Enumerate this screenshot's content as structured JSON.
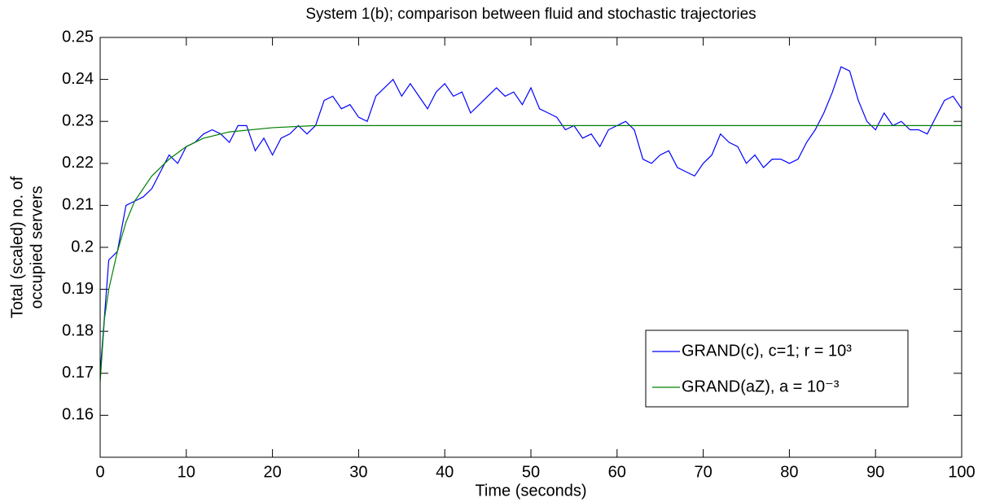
{
  "chart_data": {
    "type": "line",
    "title": "System 1(b); comparison between fluid and stochastic trajectories",
    "xlabel": "Time (seconds)",
    "ylabel": [
      "Total (scaled) no. of",
      "occupied servers"
    ],
    "xlim": [
      0,
      100
    ],
    "ylim": [
      0.15,
      0.25
    ],
    "xticks": [
      0,
      10,
      20,
      30,
      40,
      50,
      60,
      70,
      80,
      90,
      100
    ],
    "yticks": [
      0.16,
      0.17,
      0.18,
      0.19,
      0.2,
      0.21,
      0.22,
      0.23,
      0.24,
      0.25
    ],
    "legend": "lower right",
    "series": [
      {
        "name": "GRAND(c), c=1; r = 10³",
        "color": "#0000ff",
        "x": [
          0,
          1,
          2,
          3,
          4,
          5,
          6,
          7,
          8,
          9,
          10,
          11,
          12,
          13,
          14,
          15,
          16,
          17,
          18,
          19,
          20,
          21,
          22,
          23,
          24,
          25,
          26,
          27,
          28,
          29,
          30,
          31,
          32,
          33,
          34,
          35,
          36,
          37,
          38,
          39,
          40,
          41,
          42,
          43,
          44,
          45,
          46,
          47,
          48,
          49,
          50,
          51,
          52,
          53,
          54,
          55,
          56,
          57,
          58,
          59,
          60,
          61,
          62,
          63,
          64,
          65,
          66,
          67,
          68,
          69,
          70,
          71,
          72,
          73,
          74,
          75,
          76,
          77,
          78,
          79,
          80,
          81,
          82,
          83,
          84,
          85,
          86,
          87,
          88,
          89,
          90,
          91,
          92,
          93,
          94,
          95,
          96,
          97,
          98,
          99,
          100
        ],
        "values": [
          0.17,
          0.197,
          0.199,
          0.21,
          0.211,
          0.212,
          0.214,
          0.218,
          0.222,
          0.22,
          0.224,
          0.225,
          0.227,
          0.228,
          0.227,
          0.225,
          0.229,
          0.229,
          0.223,
          0.226,
          0.222,
          0.226,
          0.227,
          0.229,
          0.227,
          0.229,
          0.235,
          0.236,
          0.233,
          0.234,
          0.231,
          0.23,
          0.236,
          0.238,
          0.24,
          0.236,
          0.239,
          0.236,
          0.233,
          0.237,
          0.239,
          0.236,
          0.237,
          0.232,
          0.234,
          0.236,
          0.238,
          0.236,
          0.237,
          0.234,
          0.238,
          0.233,
          0.232,
          0.231,
          0.228,
          0.229,
          0.226,
          0.227,
          0.224,
          0.228,
          0.229,
          0.23,
          0.228,
          0.221,
          0.22,
          0.222,
          0.223,
          0.219,
          0.218,
          0.217,
          0.22,
          0.222,
          0.227,
          0.225,
          0.224,
          0.22,
          0.222,
          0.219,
          0.221,
          0.221,
          0.22,
          0.221,
          0.225,
          0.228,
          0.232,
          0.237,
          0.243,
          0.242,
          0.235,
          0.23,
          0.228,
          0.232,
          0.229,
          0.23,
          0.228,
          0.228,
          0.227,
          0.231,
          0.235,
          0.236,
          0.233
        ]
      },
      {
        "name": "GRAND(aZ), a = 10⁻³",
        "color": "#008000",
        "x": [
          0,
          0.5,
          1,
          2,
          3,
          4,
          5,
          6,
          8,
          10,
          12,
          15,
          20,
          25,
          30,
          100
        ],
        "values": [
          0.168,
          0.183,
          0.19,
          0.199,
          0.206,
          0.211,
          0.214,
          0.217,
          0.221,
          0.224,
          0.226,
          0.2275,
          0.2285,
          0.229,
          0.229,
          0.229
        ]
      }
    ]
  }
}
